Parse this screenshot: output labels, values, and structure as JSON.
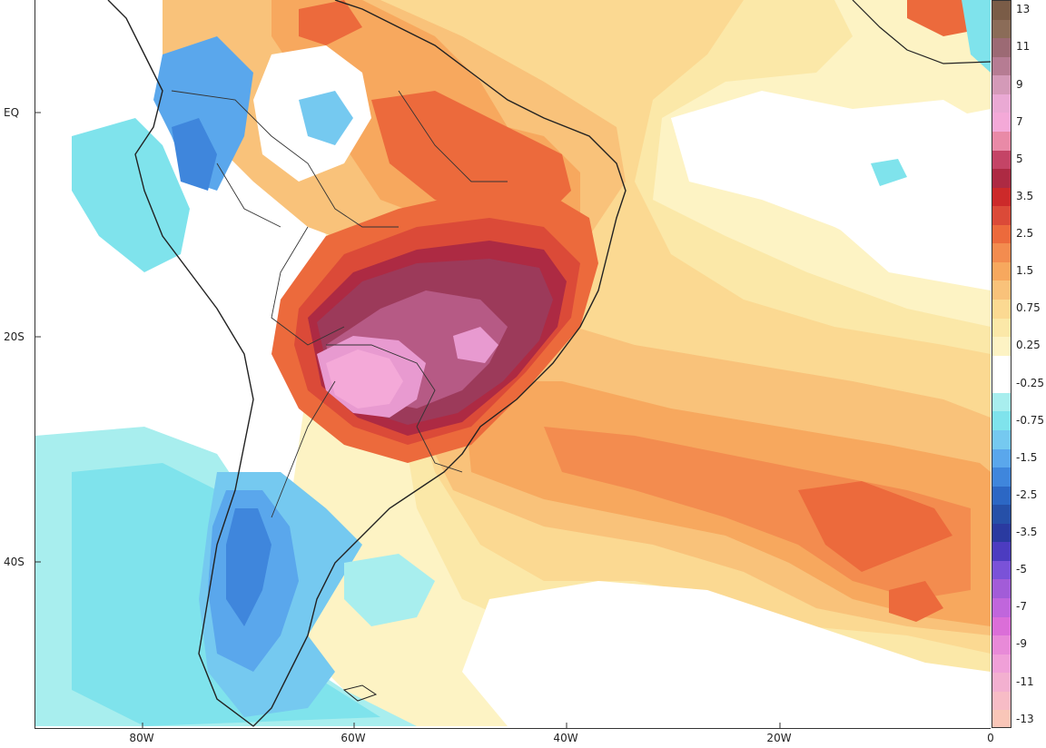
{
  "map": {
    "type": "anomaly-map",
    "region": "South America and South Atlantic",
    "y_axis": {
      "labels": [
        {
          "text": "EQ",
          "lat": 0
        },
        {
          "text": "20S",
          "lat": -20
        },
        {
          "text": "40S",
          "lat": -40
        }
      ]
    },
    "x_axis": {
      "labels": [
        {
          "text": "80W",
          "lon": -80
        },
        {
          "text": "60W",
          "lon": -60
        },
        {
          "text": "40W",
          "lon": -40
        },
        {
          "text": "20W",
          "lon": -20
        },
        {
          "text": "0",
          "lon": 0
        }
      ]
    },
    "colorbar": {
      "levels": [
        {
          "label": "13",
          "color": "#7a5c47"
        },
        {
          "label": "",
          "color": "#8b6c58"
        },
        {
          "label": "11",
          "color": "#9c6a74"
        },
        {
          "label": "",
          "color": "#b67c93"
        },
        {
          "label": "9",
          "color": "#d49ab8"
        },
        {
          "label": "",
          "color": "#eaa9d4"
        },
        {
          "label": "7",
          "color": "#f4a9d8"
        },
        {
          "label": "",
          "color": "#e98aa7"
        },
        {
          "label": "5",
          "color": "#c44466"
        },
        {
          "label": "",
          "color": "#ad2a43"
        },
        {
          "label": "3.5",
          "color": "#cc2a2a"
        },
        {
          "label": "",
          "color": "#db4a38"
        },
        {
          "label": "2.5",
          "color": "#ec6a3c"
        },
        {
          "label": "",
          "color": "#f38c4f"
        },
        {
          "label": "1.5",
          "color": "#f7a85e"
        },
        {
          "label": "",
          "color": "#f9c27a"
        },
        {
          "label": "0.75",
          "color": "#fbd992"
        },
        {
          "label": "",
          "color": "#fbe8a8"
        },
        {
          "label": "0.25",
          "color": "#fdf3c4"
        },
        {
          "label": "",
          "color": "#ffffff"
        },
        {
          "label": "-0.25",
          "color": "#ffffff"
        },
        {
          "label": "",
          "color": "#a8eeee"
        },
        {
          "label": "-0.75",
          "color": "#7fe3ec"
        },
        {
          "label": "",
          "color": "#75c9f0"
        },
        {
          "label": "-1.5",
          "color": "#5aa7ec"
        },
        {
          "label": "",
          "color": "#3f86dc"
        },
        {
          "label": "-2.5",
          "color": "#2c67c4"
        },
        {
          "label": "",
          "color": "#2650a8"
        },
        {
          "label": "-3.5",
          "color": "#2a3aa0"
        },
        {
          "label": "",
          "color": "#4c3cc0"
        },
        {
          "label": "-5",
          "color": "#7a52d8"
        },
        {
          "label": "",
          "color": "#a25cd8"
        },
        {
          "label": "-7",
          "color": "#c066dc"
        },
        {
          "label": "",
          "color": "#db6ed8"
        },
        {
          "label": "-9",
          "color": "#e88ad8"
        },
        {
          "label": "",
          "color": "#f0a0d8"
        },
        {
          "label": "-11",
          "color": "#f3b0d0"
        },
        {
          "label": "",
          "color": "#f7bcc6"
        },
        {
          "label": "-13",
          "color": "#f9c6b8"
        }
      ]
    },
    "palette": {
      "white": "#ffffff",
      "pale_yellow": "#fdf3c4",
      "light_yellow": "#fbe8a8",
      "yellow": "#fbd992",
      "light_orange": "#f9c27a",
      "orange": "#f7a85e",
      "dark_orange": "#f38c4f",
      "red_orange": "#ec6a3c",
      "red": "#db4a38",
      "crimson": "#ad2a43",
      "maroon": "#9c3a5a",
      "dark_pink": "#b65a85",
      "pink": "#e89ad0",
      "light_pink": "#f4a9d8",
      "light_cyan": "#a8eeee",
      "cyan": "#7fe3ec",
      "light_blue": "#75c9f0",
      "blue": "#5aa7ec",
      "mid_blue": "#3f86dc",
      "dark_blue": "#2c67c4",
      "border": "#222222"
    }
  }
}
